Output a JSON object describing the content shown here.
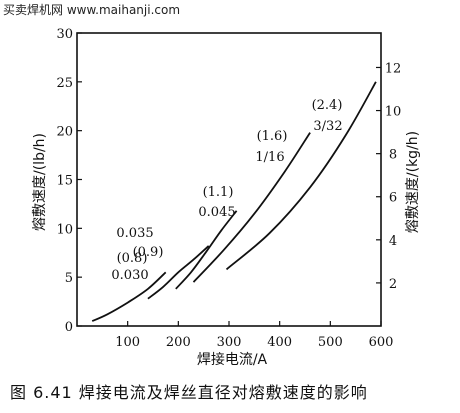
{
  "watermark": "买卖焊机网 www.maihanji.com",
  "caption": "图 6.41  焊接电流及焊丝直径对熔敷速度的影响",
  "chart_data": {
    "type": "line",
    "xlabel": "焊接电流/A",
    "ylabel_left": "熔敷速度/(lb/h)",
    "ylabel_right": "熔敷速度/(kg/h)",
    "xlim": [
      0,
      600
    ],
    "ylim_left": [
      0,
      30
    ],
    "ylim_right": [
      0,
      13.6
    ],
    "x_ticks": [
      100,
      200,
      300,
      400,
      500,
      600
    ],
    "y_ticks_left": [
      0,
      5,
      10,
      15,
      20,
      25,
      30
    ],
    "y_ticks_right": [
      2,
      4,
      6,
      8,
      10,
      12
    ],
    "grid": false,
    "series": [
      {
        "labels": [
          "(0.8)",
          "0.030"
        ],
        "x": [
          30,
          60,
          100,
          140,
          175
        ],
        "y": [
          0.5,
          1.2,
          2.4,
          3.8,
          5.5
        ]
      },
      {
        "labels": [
          "0.035",
          "(0.9)"
        ],
        "x": [
          140,
          170,
          200,
          230,
          260
        ],
        "y": [
          2.8,
          4.0,
          5.5,
          6.8,
          8.2
        ]
      },
      {
        "labels": [
          "(1.1)",
          "0.045"
        ],
        "x": [
          195,
          225,
          255,
          285,
          315
        ],
        "y": [
          3.8,
          5.5,
          7.6,
          9.8,
          11.8
        ]
      },
      {
        "labels": [
          "(1.6)",
          "1/16"
        ],
        "x": [
          230,
          290,
          350,
          410,
          460
        ],
        "y": [
          4.5,
          7.8,
          11.5,
          15.8,
          19.8
        ]
      },
      {
        "labels": [
          "(2.4)",
          "3/32"
        ],
        "x": [
          295,
          380,
          460,
          530,
          590
        ],
        "y": [
          5.8,
          9.5,
          14.2,
          19.5,
          25.0
        ]
      }
    ]
  }
}
